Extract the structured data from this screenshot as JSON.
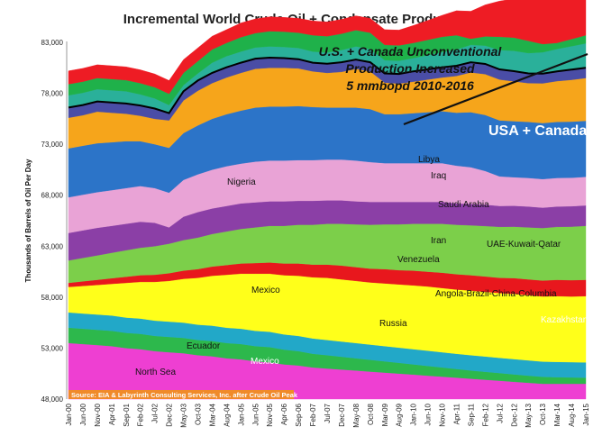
{
  "chart_data": {
    "type": "area",
    "title": "Incremental World Crude Oil + Condensate Production",
    "ylabel": "Thousands of Barrels of Oil Per Day",
    "ylim": [
      48000,
      83000
    ],
    "yticks": [
      "48,000",
      "53,000",
      "58,000",
      "63,000",
      "68,000",
      "73,000",
      "78,000",
      "83,000"
    ],
    "categories": [
      "Jan-00",
      "Jun-00",
      "Nov-00",
      "Apr-01",
      "Sep-01",
      "Feb-02",
      "Jul-02",
      "Dec-02",
      "May-03",
      "Oct-03",
      "Mar-04",
      "Aug-04",
      "Jan-05",
      "Jun-05",
      "Nov-05",
      "Apr-06",
      "Sep-06",
      "Feb-07",
      "Jul-07",
      "Dec-07",
      "May-08",
      "Oct-08",
      "Mar-09",
      "Aug-09",
      "Jan-10",
      "Jun-10",
      "Nov-10",
      "Apr-11",
      "Sep-11",
      "Feb-12",
      "Jul-12",
      "Dec-12",
      "May-13",
      "Oct-13",
      "Mar-14",
      "Aug-14",
      "Jan-15"
    ],
    "series": [
      {
        "name": "North Sea",
        "color": "#ee3fd2",
        "values": [
          5500,
          5400,
          5300,
          5200,
          5000,
          4900,
          4700,
          4600,
          4500,
          4300,
          4200,
          4000,
          3900,
          3700,
          3600,
          3400,
          3300,
          3100,
          3000,
          2900,
          2800,
          2700,
          2600,
          2500,
          2400,
          2300,
          2200,
          2100,
          2000,
          1900,
          1800,
          1700,
          1600,
          1500,
          1500,
          1500,
          1500
        ]
      },
      {
        "name": "Mexico",
        "color": "#2db84c",
        "values": [
          1500,
          1500,
          1500,
          1500,
          1500,
          1500,
          1500,
          1500,
          1500,
          1500,
          1500,
          1500,
          1500,
          1500,
          1500,
          1450,
          1400,
          1350,
          1300,
          1250,
          1200,
          1150,
          1100,
          1050,
          1000,
          950,
          900,
          850,
          800,
          780,
          750,
          720,
          700,
          680,
          650,
          620,
          600
        ]
      },
      {
        "name": "Ecuador",
        "color": "#22a8c8",
        "values": [
          1500,
          1500,
          1500,
          1500,
          1500,
          1500,
          1500,
          1500,
          1500,
          1500,
          1500,
          1500,
          1500,
          1500,
          1500,
          1500,
          1500,
          1500,
          1500,
          1500,
          1500,
          1500,
          1500,
          1500,
          1500,
          1500,
          1500,
          1500,
          1500,
          1500,
          1500,
          1500,
          1500,
          1500,
          1500,
          1500,
          1500
        ]
      },
      {
        "name": "Russia",
        "color": "#ffff1a",
        "values": [
          2500,
          2700,
          2900,
          3100,
          3400,
          3600,
          3800,
          4000,
          4300,
          4600,
          4900,
          5200,
          5400,
          5600,
          5700,
          5800,
          5900,
          6000,
          6100,
          6100,
          6100,
          6100,
          6150,
          6200,
          6250,
          6300,
          6300,
          6300,
          6350,
          6350,
          6350,
          6400,
          6400,
          6400,
          6450,
          6450,
          6500
        ]
      },
      {
        "name": "Kazakhstan",
        "color": "#e8171d",
        "values": [
          400,
          450,
          500,
          550,
          600,
          650,
          700,
          750,
          800,
          850,
          900,
          950,
          1000,
          1050,
          1100,
          1150,
          1200,
          1250,
          1300,
          1350,
          1350,
          1350,
          1400,
          1400,
          1450,
          1450,
          1500,
          1500,
          1500,
          1500,
          1500,
          1550,
          1550,
          1550,
          1600,
          1600,
          1600
        ]
      },
      {
        "name": "Angola-Brazil-China-Columbia",
        "color": "#7ccf4a",
        "values": [
          2200,
          2300,
          2400,
          2500,
          2600,
          2700,
          2800,
          2900,
          3000,
          3100,
          3200,
          3300,
          3400,
          3500,
          3600,
          3700,
          3800,
          3900,
          4000,
          4100,
          4200,
          4300,
          4400,
          4500,
          4600,
          4700,
          4800,
          4850,
          4900,
          4950,
          5000,
          5050,
          5100,
          5150,
          5200,
          5250,
          5300
        ]
      },
      {
        "name": "Venezuela",
        "color": "#8b3fa6",
        "values": [
          2700,
          2700,
          2700,
          2650,
          2600,
          2550,
          2300,
          1600,
          2300,
          2500,
          2500,
          2500,
          2500,
          2450,
          2400,
          2400,
          2350,
          2350,
          2300,
          2300,
          2250,
          2250,
          2200,
          2200,
          2150,
          2150,
          2150,
          2100,
          2100,
          2100,
          2050,
          2050,
          2050,
          2000,
          2000,
          2000,
          2000
        ]
      },
      {
        "name": "Iran",
        "color": "#e9a3d6",
        "values": [
          3500,
          3500,
          3500,
          3500,
          3500,
          3500,
          3400,
          3400,
          3600,
          3700,
          3800,
          3900,
          3900,
          4000,
          4000,
          4000,
          4000,
          4000,
          4000,
          4000,
          4000,
          3900,
          3800,
          3800,
          3800,
          3800,
          3800,
          3700,
          3600,
          3300,
          2900,
          2800,
          2800,
          2800,
          2800,
          2800,
          2800
        ]
      },
      {
        "name": "UAE-Kuwait-Qatar",
        "color": "#2c74c8",
        "values": [
          4800,
          4800,
          4800,
          4700,
          4600,
          4400,
          4300,
          4400,
          4600,
          4800,
          5000,
          5100,
          5200,
          5300,
          5300,
          5300,
          5300,
          5200,
          5100,
          5100,
          5200,
          5200,
          4800,
          4800,
          4900,
          5000,
          5100,
          5200,
          5400,
          5500,
          5500,
          5500,
          5500,
          5500,
          5500,
          5500,
          5500
        ]
      },
      {
        "name": "Saudi Arabia",
        "color": "#f6a51b",
        "values": [
          3000,
          3000,
          3100,
          2900,
          2700,
          2500,
          2500,
          2700,
          3200,
          3400,
          3500,
          3600,
          3700,
          3800,
          3800,
          3800,
          3700,
          3500,
          3400,
          3500,
          3800,
          3700,
          3100,
          3000,
          3100,
          3200,
          3300,
          3600,
          3900,
          4000,
          4000,
          3900,
          3800,
          3900,
          4000,
          4100,
          4200
        ]
      },
      {
        "name": "Nigeria",
        "color": "#4a4da6",
        "values": [
          1000,
          1000,
          1000,
          1000,
          1000,
          1000,
          1000,
          700,
          900,
          1000,
          1000,
          1000,
          1000,
          1000,
          1000,
          950,
          900,
          850,
          900,
          950,
          900,
          900,
          900,
          950,
          1000,
          1000,
          1000,
          1000,
          1000,
          1000,
          1000,
          1000,
          950,
          950,
          950,
          1000,
          1000
        ]
      },
      {
        "name": "Iraq",
        "color": "#2ab09a",
        "values": [
          1200,
          1200,
          1200,
          1200,
          1200,
          1100,
          1000,
          800,
          600,
          700,
          1000,
          1100,
          1100,
          1100,
          1100,
          1100,
          1100,
          1100,
          1100,
          1200,
          1300,
          1300,
          1300,
          1300,
          1300,
          1400,
          1500,
          1600,
          1700,
          1800,
          1900,
          2000,
          2000,
          2100,
          2200,
          2300,
          2400
        ]
      },
      {
        "name": "Libya",
        "color": "#1fb14a",
        "values": [
          1100,
          1100,
          1100,
          1100,
          1100,
          1100,
          1100,
          1100,
          1200,
          1200,
          1300,
          1300,
          1400,
          1400,
          1500,
          1500,
          1500,
          1600,
          1600,
          1600,
          1600,
          1600,
          1500,
          1500,
          1500,
          1500,
          1500,
          1400,
          600,
          900,
          1300,
          1300,
          1200,
          800,
          600,
          700,
          800
        ]
      },
      {
        "name": "USA + Canada",
        "color": "#ee1c24",
        "values": [
          1300,
          1300,
          1300,
          1300,
          1300,
          1300,
          1300,
          1300,
          1300,
          1300,
          1300,
          1300,
          1400,
          1400,
          1400,
          1400,
          1400,
          1400,
          1400,
          1400,
          1400,
          1400,
          1500,
          1500,
          1700,
          1900,
          2100,
          2400,
          2700,
          3100,
          3500,
          3800,
          4200,
          4600,
          5000,
          5600,
          6200
        ]
      }
    ],
    "labels": [
      "North Sea",
      "Mexico",
      "Ecuador",
      "Russia",
      "Kazakhstan",
      "Angola-Brazil-China-Columbia",
      "Venezuela",
      "Iran",
      "UAE-Kuwait-Qatar",
      "Saudi Arabia",
      "Nigeria",
      "Iraq",
      "Libya",
      "USA + Canada",
      "Mexico"
    ],
    "annotation": [
      "U.S. + Canada Unconventional",
      "Production Increased",
      "5 mmbopd 2010-2016"
    ],
    "source": "Source: EIA & Labyrinth Consulting Services, Inc. after Crude Oil Peak",
    "grid": false,
    "legend": "none"
  }
}
